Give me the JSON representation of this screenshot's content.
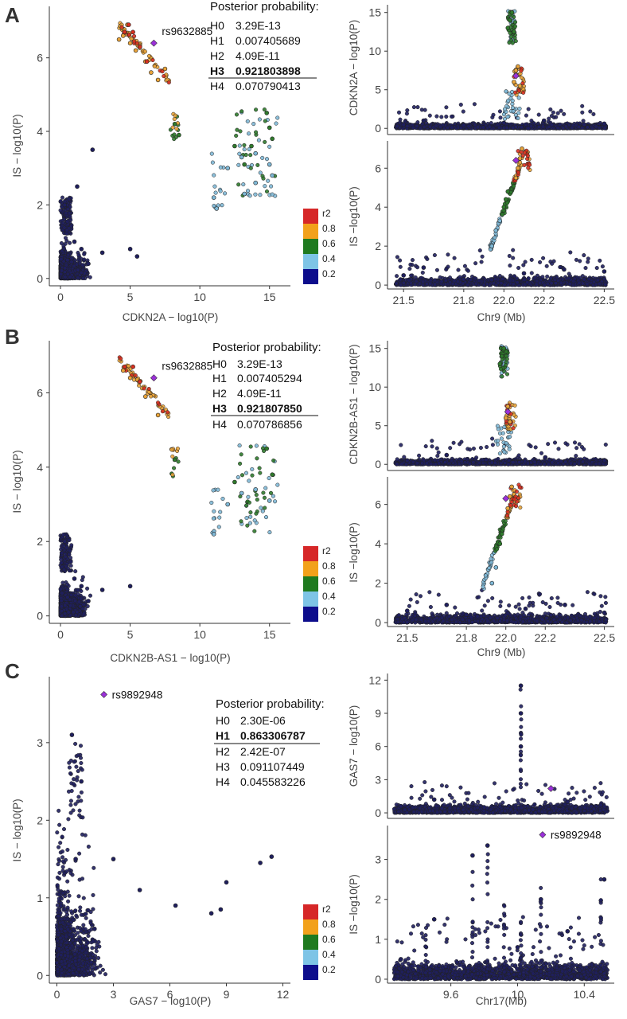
{
  "palette": {
    "bin_0_2": "#1f1f5e",
    "bin_2_4": "#7fb8d6",
    "bin_4_6": "#2f7a2c",
    "bin_6_8": "#e8a33a",
    "bin_8_10": "#d7301f",
    "lead": "#9b30d9",
    "legend": [
      "#d62728",
      "#f2a11b",
      "#1f7a1f",
      "#7ec4e6",
      "#0d0d8c"
    ]
  },
  "legend": {
    "title": "r2",
    "ticks": [
      "0.8",
      "0.6",
      "0.4",
      "0.2"
    ]
  },
  "panels": [
    {
      "letter": "A",
      "lead_snp": "rs9632885",
      "posterior": {
        "title": "Posterior probability:",
        "rows": [
          {
            "h": "H0",
            "v": "3.29E-13",
            "bold": false
          },
          {
            "h": "H1",
            "v": "0.007405689",
            "bold": false
          },
          {
            "h": "H2",
            "v": "4.09E-11",
            "bold": false
          },
          {
            "h": "H3",
            "v": "0.921803898",
            "bold": true
          },
          {
            "h": "H4",
            "v": "0.070790413",
            "bold": false
          }
        ]
      }
    },
    {
      "letter": "B",
      "lead_snp": "rs9632885",
      "posterior": {
        "title": "Posterior probability:",
        "rows": [
          {
            "h": "H0",
            "v": "3.29E-13",
            "bold": false
          },
          {
            "h": "H1",
            "v": "0.007405294",
            "bold": false
          },
          {
            "h": "H2",
            "v": "4.09E-11",
            "bold": false
          },
          {
            "h": "H3",
            "v": "0.921807850",
            "bold": true
          },
          {
            "h": "H4",
            "v": "0.070786856",
            "bold": false
          }
        ]
      }
    },
    {
      "letter": "C",
      "lead_snp": "rs9892948",
      "posterior": {
        "title": "Posterior probability:",
        "rows": [
          {
            "h": "H0",
            "v": "2.30E-06",
            "bold": false
          },
          {
            "h": "H1",
            "v": "0.863306787",
            "bold": true
          },
          {
            "h": "H2",
            "v": "2.42E-07",
            "bold": false
          },
          {
            "h": "H3",
            "v": "0.091107449",
            "bold": false
          },
          {
            "h": "H4",
            "v": "0.045583226",
            "bold": false
          }
        ]
      }
    }
  ],
  "chart_data": [
    {
      "id": "A-scatter",
      "panel": "A",
      "type": "scatter",
      "xlabel": "CDKN2A − log10(P)",
      "ylabel": "IS − log10(P)",
      "xlim": [
        -0.8,
        16.5
      ],
      "ylim": [
        -0.2,
        7.4
      ],
      "xticks": [
        0,
        5,
        10,
        15
      ],
      "yticks": [
        0,
        2,
        4,
        6
      ],
      "lead": {
        "x": 6.7,
        "y": 6.4,
        "label": "rs9632885"
      },
      "series": [
        {
          "r2": "0-0.2",
          "points": [
            [
              0.5,
              0.5
            ],
            [
              1,
              1
            ],
            [
              0.3,
              2
            ],
            [
              1.5,
              0.8
            ],
            [
              2,
              0.4
            ],
            [
              3,
              0.7
            ],
            [
              5,
              0.8
            ],
            [
              5.5,
              0.6
            ],
            [
              2.3,
              3.5
            ],
            [
              1.2,
              2.5
            ]
          ]
        },
        {
          "r2": "0.2-0.4",
          "points": [
            [
              11,
              2.2
            ],
            [
              12,
              3
            ],
            [
              13,
              3.3
            ],
            [
              14,
              3.4
            ],
            [
              15,
              3.1
            ],
            [
              15.2,
              2.8
            ],
            [
              13.2,
              2.3
            ],
            [
              11.2,
              1.9
            ],
            [
              14,
              2.6
            ]
          ]
        },
        {
          "r2": "0.4-0.6",
          "points": [
            [
              8.2,
              4.2
            ],
            [
              8.5,
              3.9
            ],
            [
              12.5,
              3.6
            ],
            [
              13.2,
              3.1
            ],
            [
              14.8,
              4.5
            ],
            [
              15,
              4.1
            ],
            [
              15.2,
              3.8
            ],
            [
              13.7,
              3.6
            ]
          ]
        },
        {
          "r2": "0.6-0.8",
          "points": [
            [
              4.5,
              6.6
            ],
            [
              5,
              6.4
            ],
            [
              5.4,
              6.2
            ],
            [
              6.1,
              5.9
            ],
            [
              6.5,
              5.6
            ],
            [
              7,
              5.4
            ],
            [
              4.8,
              6.9
            ],
            [
              7.5,
              5.7
            ],
            [
              4.2,
              6.5
            ]
          ]
        },
        {
          "r2": "0.8-1",
          "points": [
            [
              4.6,
              6.7
            ],
            [
              4.9,
              6.9
            ],
            [
              5.2,
              6.7
            ],
            [
              5.7,
              6.3
            ],
            [
              6.2,
              5.9
            ]
          ]
        }
      ]
    },
    {
      "id": "A-top",
      "panel": "A",
      "type": "scatter",
      "xlabel": "",
      "ylabel": "CDKN2A − log10(P)",
      "xlim": [
        21.42,
        22.55
      ],
      "ylim": [
        -0.8,
        16
      ],
      "xticks": [],
      "yticks": [
        0,
        5,
        10,
        15
      ],
      "lead": {
        "x": 22.06,
        "y": 6.8,
        "label": ""
      },
      "series": [
        {
          "r2": "0-0.2",
          "points": [
            [
              21.5,
              0.5
            ],
            [
              21.6,
              1
            ],
            [
              21.8,
              0.4
            ],
            [
              22.0,
              0.7
            ],
            [
              22.2,
              1
            ],
            [
              22.4,
              0.5
            ],
            [
              22.5,
              0.6
            ]
          ]
        },
        {
          "r2": "0.4-0.6",
          "points": [
            [
              22.02,
              13
            ],
            [
              22.03,
              14
            ],
            [
              22.04,
              15
            ],
            [
              22.05,
              12.5
            ]
          ]
        },
        {
          "r2": "0.6-0.8",
          "points": [
            [
              22.05,
              6
            ],
            [
              22.06,
              7.5
            ],
            [
              22.07,
              8
            ],
            [
              22.08,
              5.5
            ]
          ]
        }
      ]
    },
    {
      "id": "A-bottom",
      "panel": "A",
      "type": "scatter",
      "xlabel": "Chr9 (Mb)",
      "ylabel": "IS −log10(P)",
      "xlim": [
        21.42,
        22.55
      ],
      "ylim": [
        -0.2,
        7.4
      ],
      "xticks": [
        21.5,
        21.8,
        22.0,
        22.2,
        22.5
      ],
      "yticks": [
        0,
        2,
        4,
        6
      ],
      "lead": {
        "x": 22.06,
        "y": 6.4,
        "label": ""
      },
      "series": [
        {
          "r2": "0-0.2",
          "points": [
            [
              21.5,
              0.5
            ],
            [
              21.6,
              0.9
            ],
            [
              21.8,
              0.3
            ],
            [
              22.1,
              0.6
            ],
            [
              22.3,
              0.8
            ],
            [
              22.4,
              0.3
            ],
            [
              22.5,
              0.7
            ]
          ]
        },
        {
          "r2": "0.2-0.4",
          "points": [
            [
              21.94,
              2
            ],
            [
              21.96,
              2.8
            ],
            [
              21.98,
              3.3
            ]
          ]
        },
        {
          "r2": "0.4-0.6",
          "points": [
            [
              22.0,
              4
            ],
            [
              22.01,
              4.4
            ],
            [
              22.02,
              4.8
            ]
          ]
        },
        {
          "r2": "0.6-0.8",
          "points": [
            [
              22.06,
              5.5
            ],
            [
              22.07,
              6
            ],
            [
              22.08,
              6.5
            ],
            [
              22.09,
              7
            ]
          ]
        }
      ]
    },
    {
      "id": "B-scatter",
      "panel": "B",
      "type": "scatter",
      "xlabel": "CDKN2B-AS1 − log10(P)",
      "ylabel": "IS − log10(P)",
      "xlim": [
        -0.8,
        16.5
      ],
      "ylim": [
        -0.2,
        7.4
      ],
      "xticks": [
        0,
        5,
        10,
        15
      ],
      "yticks": [
        0,
        2,
        4,
        6
      ],
      "lead": {
        "x": 6.7,
        "y": 6.4,
        "label": "rs9632885"
      },
      "series": [
        {
          "r2": "0-0.2",
          "points": [
            [
              0.5,
              0.5
            ],
            [
              1,
              1
            ],
            [
              0.3,
              2
            ],
            [
              1.5,
              0.8
            ],
            [
              2,
              0.4
            ],
            [
              3,
              0.7
            ],
            [
              5,
              0.8
            ]
          ]
        },
        {
          "r2": "0.2-0.4",
          "points": [
            [
              11,
              2.2
            ],
            [
              12,
              3
            ],
            [
              13,
              3.3
            ],
            [
              14,
              3.4
            ],
            [
              15,
              3.1
            ]
          ]
        },
        {
          "r2": "0.4-0.6",
          "points": [
            [
              8.2,
              4.2
            ],
            [
              12.5,
              3.6
            ],
            [
              14.8,
              4.5
            ],
            [
              15.2,
              3.8
            ]
          ]
        },
        {
          "r2": "0.6-0.8",
          "points": [
            [
              4.5,
              6.6
            ],
            [
              5,
              6.4
            ],
            [
              6.1,
              5.9
            ],
            [
              7,
              5.4
            ]
          ]
        },
        {
          "r2": "0.8-1",
          "points": [
            [
              4.6,
              6.7
            ],
            [
              5.2,
              6.7
            ],
            [
              5.7,
              6.3
            ]
          ]
        }
      ]
    },
    {
      "id": "B-top",
      "panel": "B",
      "type": "scatter",
      "xlabel": "",
      "ylabel": "CDKN2B-AS1 − log10(P)",
      "xlim": [
        21.4,
        22.55
      ],
      "ylim": [
        -0.8,
        16
      ],
      "xticks": [],
      "yticks": [
        0,
        5,
        10,
        15
      ],
      "lead": {
        "x": 22.01,
        "y": 6.8,
        "label": ""
      },
      "series": [
        {
          "r2": "0-0.2",
          "points": [
            [
              21.5,
              0.5
            ],
            [
              21.7,
              1.2
            ],
            [
              21.9,
              0.6
            ],
            [
              22.2,
              0.9
            ],
            [
              22.5,
              0.5
            ]
          ]
        },
        {
          "r2": "0.4-0.6",
          "points": [
            [
              21.97,
              13
            ],
            [
              21.98,
              14
            ],
            [
              21.99,
              15
            ]
          ]
        },
        {
          "r2": "0.6-0.8",
          "points": [
            [
              22.0,
              6
            ],
            [
              22.01,
              7.5
            ],
            [
              22.02,
              5.5
            ]
          ]
        }
      ]
    },
    {
      "id": "B-bottom",
      "panel": "B",
      "type": "scatter",
      "xlabel": "Chr9 (Mb)",
      "ylabel": "IS −log10(P)",
      "xlim": [
        21.4,
        22.55
      ],
      "ylim": [
        -0.2,
        7.4
      ],
      "xticks": [
        21.5,
        21.8,
        22.0,
        22.2,
        22.5
      ],
      "yticks": [
        0,
        2,
        4,
        6
      ],
      "lead": {
        "x": 22.0,
        "y": 6.3,
        "label": ""
      },
      "series": [
        {
          "r2": "0-0.2",
          "points": [
            [
              21.5,
              0.6
            ],
            [
              21.7,
              0.9
            ],
            [
              21.8,
              0.4
            ],
            [
              22.1,
              0.7
            ],
            [
              22.3,
              0.9
            ],
            [
              22.5,
              0.5
            ]
          ]
        },
        {
          "r2": "0.2-0.4",
          "points": [
            [
              21.93,
              2
            ],
            [
              21.95,
              2.8
            ]
          ]
        },
        {
          "r2": "0.4-0.6",
          "points": [
            [
              21.97,
              4
            ],
            [
              21.98,
              4.5
            ]
          ]
        },
        {
          "r2": "0.6-0.8",
          "points": [
            [
              22.01,
              5.8
            ],
            [
              22.02,
              6.4
            ],
            [
              22.03,
              6.9
            ]
          ]
        }
      ]
    },
    {
      "id": "C-scatter",
      "panel": "C",
      "type": "scatter",
      "xlabel": "GAS7 − log10(P)",
      "ylabel": "IS − log10(P)",
      "xlim": [
        -0.4,
        12.4
      ],
      "ylim": [
        -0.1,
        3.85
      ],
      "xticks": [
        0,
        3,
        6,
        9,
        12
      ],
      "yticks": [
        0,
        1,
        2,
        3
      ],
      "lead": {
        "x": 2.5,
        "y": 3.62,
        "label": "rs9892948"
      },
      "series": [
        {
          "r2": "0-0.2",
          "points": [
            [
              0.5,
              0.5
            ],
            [
              1,
              1.5
            ],
            [
              1.3,
              2.5
            ],
            [
              0.8,
              3.1
            ],
            [
              2,
              0.6
            ],
            [
              3,
              1.5
            ],
            [
              4.4,
              1.1
            ],
            [
              6.3,
              0.9
            ],
            [
              8.2,
              0.8
            ],
            [
              8.7,
              0.85
            ],
            [
              9,
              1.2
            ],
            [
              10.8,
              1.45
            ],
            [
              11.4,
              1.53
            ]
          ]
        }
      ]
    },
    {
      "id": "C-top",
      "panel": "C",
      "type": "scatter",
      "xlabel": "",
      "ylabel": "GAS7 − log10(P)",
      "xlim": [
        9.22,
        10.58
      ],
      "ylim": [
        -0.5,
        12.6
      ],
      "xticks": [],
      "yticks": [
        0,
        3,
        6,
        9,
        12
      ],
      "lead": {
        "x": 10.2,
        "y": 2.2,
        "label": ""
      },
      "series": [
        {
          "r2": "0-0.2",
          "points": [
            [
              9.3,
              0.6
            ],
            [
              9.5,
              1.2
            ],
            [
              9.8,
              0.5
            ],
            [
              10.02,
              11.5
            ],
            [
              10.02,
              9
            ],
            [
              10.02,
              6
            ],
            [
              10.3,
              1
            ],
            [
              10.5,
              0.7
            ]
          ]
        }
      ]
    },
    {
      "id": "C-bottom",
      "panel": "C",
      "type": "scatter",
      "xlabel": "Chr17(Mb)",
      "ylabel": "IS −log10(P)",
      "xlim": [
        9.22,
        10.58
      ],
      "ylim": [
        -0.1,
        3.85
      ],
      "xticks": [
        9.6,
        10,
        10.4
      ],
      "yticks": [
        0,
        1,
        2,
        3
      ],
      "lead": {
        "x": 10.15,
        "y": 3.62,
        "label": "rs9892948"
      },
      "series": [
        {
          "r2": "0-0.2",
          "points": [
            [
              9.3,
              0.5
            ],
            [
              9.5,
              1.5
            ],
            [
              9.73,
              3.1
            ],
            [
              9.82,
              3.35
            ],
            [
              10.0,
              0.8
            ],
            [
              10.14,
              2
            ],
            [
              10.3,
              1.2
            ],
            [
              10.52,
              2.5
            ]
          ]
        }
      ]
    }
  ]
}
